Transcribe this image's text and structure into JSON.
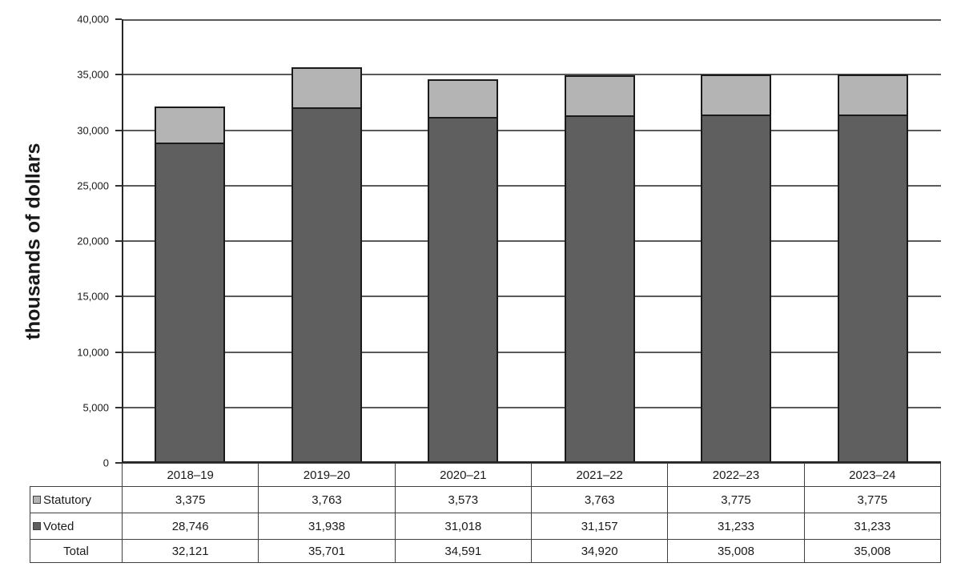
{
  "chart_data": {
    "type": "bar",
    "stacked": true,
    "title": "",
    "ylabel": "thousands of dollars",
    "xlabel": "",
    "ylim": [
      0,
      40000
    ],
    "ytick_step": 5000,
    "ytick_labels": [
      "0",
      "5,000",
      "10,000",
      "15,000",
      "20,000",
      "25,000",
      "30,000",
      "35,000",
      "40,000"
    ],
    "grid": true,
    "legend_position": "table-row-headers",
    "categories": [
      "2018–19",
      "2019–20",
      "2020–21",
      "2021–22",
      "2022–23",
      "2023–24"
    ],
    "series": [
      {
        "name": "Statutory",
        "color": "#b4b4b4",
        "values": [
          3375,
          3763,
          3573,
          3763,
          3775,
          3775
        ],
        "display": [
          "3,375",
          "3,763",
          "3,573",
          "3,763",
          "3,775",
          "3,775"
        ]
      },
      {
        "name": "Voted",
        "color": "#5f5f5f",
        "values": [
          28746,
          31938,
          31018,
          31157,
          31233,
          31233
        ],
        "display": [
          "28,746",
          "31,938",
          "31,018",
          "31,157",
          "31,233",
          "31,233"
        ]
      }
    ],
    "total": {
      "name": "Total",
      "values": [
        32121,
        35701,
        34591,
        34920,
        35008,
        35008
      ],
      "display": [
        "32,121",
        "35,701",
        "34,591",
        "34,920",
        "35,008",
        "35,008"
      ]
    }
  },
  "colors": {
    "statutory_fill": "#b4b4b4",
    "voted_fill": "#5f5f5f",
    "bar_border": "#1a1a1a",
    "gridline": "#5a5a5a",
    "axis": "#262626",
    "table_border": "#404040",
    "text": "#1a1a1a",
    "background": "#ffffff"
  }
}
